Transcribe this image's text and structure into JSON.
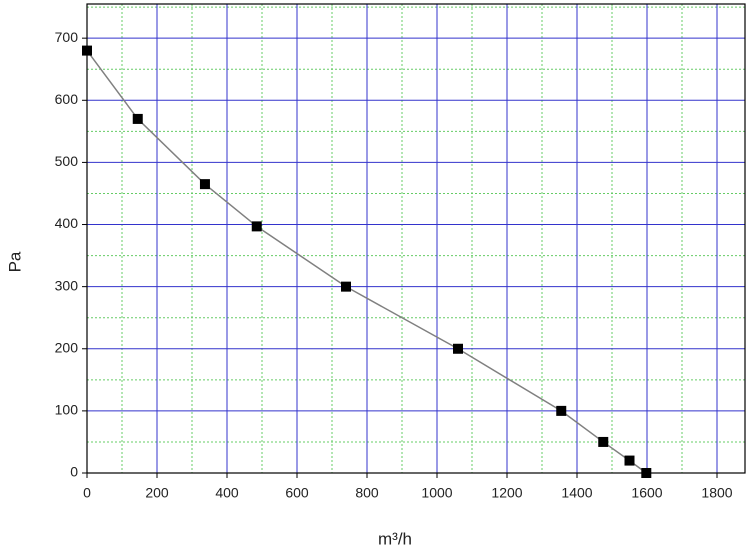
{
  "chart_data": {
    "type": "scatter",
    "x_label": "m³/h",
    "y_label": "Pa",
    "x": [
      0,
      145,
      337,
      485,
      740,
      1060,
      1355,
      1475,
      1550,
      1598
    ],
    "values": [
      680,
      570,
      465,
      397,
      300,
      200,
      100,
      50,
      20,
      0
    ],
    "color": "#000000",
    "line_color": "#808080",
    "connect": true,
    "xlim": [
      0,
      1880
    ],
    "ylim": [
      0,
      755
    ],
    "xticks": [
      0,
      200,
      400,
      600,
      800,
      1000,
      1200,
      1400,
      1600,
      1800
    ],
    "yticks": [
      0,
      100,
      200,
      300,
      400,
      500,
      600,
      700
    ],
    "grid": true,
    "grid_color": "#3333cc",
    "minor_grid": true,
    "minor_grid_color": "#66cc66"
  }
}
